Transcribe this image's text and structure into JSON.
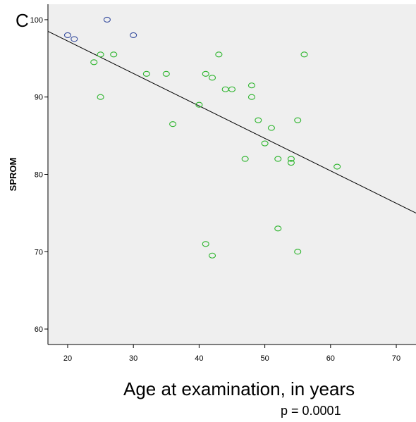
{
  "panel_label": "C",
  "footnote": "p = 0.0001",
  "chart_data": {
    "type": "scatter",
    "xlabel": "Age at examination, in years",
    "ylabel": "SPROM",
    "xlim": [
      17,
      73
    ],
    "ylim": [
      58,
      102
    ],
    "xticks": [
      20,
      30,
      40,
      50,
      60,
      70
    ],
    "yticks": [
      60,
      70,
      80,
      90,
      100
    ],
    "grid": false,
    "background": "#efefef",
    "series": [
      {
        "color": "#3a50a0",
        "points": [
          [
            20,
            98
          ],
          [
            21,
            97.5
          ],
          [
            26,
            100
          ],
          [
            30,
            98
          ]
        ]
      },
      {
        "color": "#2db52d",
        "points": [
          [
            24,
            94.5
          ],
          [
            25,
            95.5
          ],
          [
            25,
            90
          ],
          [
            27,
            95.5
          ],
          [
            32,
            93
          ],
          [
            35,
            93
          ],
          [
            36,
            86.5
          ],
          [
            40,
            89
          ],
          [
            41,
            93
          ],
          [
            41,
            71
          ],
          [
            42,
            92.5
          ],
          [
            42,
            69.5
          ],
          [
            43,
            95.5
          ],
          [
            44,
            91
          ],
          [
            45,
            91
          ],
          [
            47,
            82
          ],
          [
            48,
            91.5
          ],
          [
            48,
            90
          ],
          [
            49,
            87
          ],
          [
            50,
            84
          ],
          [
            51,
            86
          ],
          [
            52,
            82
          ],
          [
            52,
            73
          ],
          [
            54,
            82
          ],
          [
            54,
            81.5
          ],
          [
            55,
            87
          ],
          [
            55,
            70
          ],
          [
            56,
            95.5
          ],
          [
            61,
            81
          ]
        ]
      }
    ],
    "fit_line": {
      "x": [
        17,
        73
      ],
      "y": [
        98.5,
        75
      ]
    }
  }
}
